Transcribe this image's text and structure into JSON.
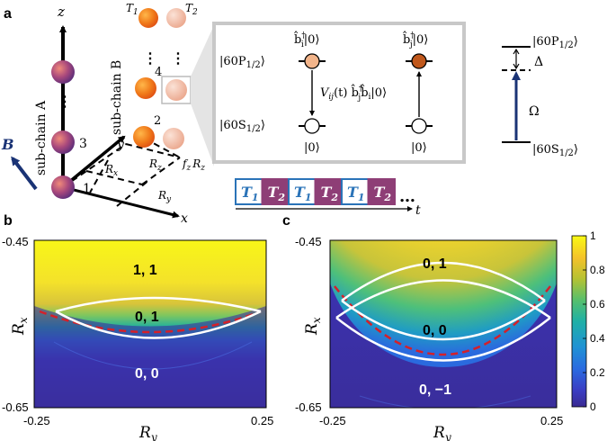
{
  "panel_labels": {
    "a": "a",
    "b": "b",
    "c": "c"
  },
  "panel_a": {
    "axes": {
      "z": "z",
      "y": "y",
      "x": "x"
    },
    "field": "B",
    "chains": {
      "A": "sub-chain A",
      "B": "sub-chain B"
    },
    "site_labels": {
      "s1": "1",
      "s2": "2",
      "s3": "3",
      "s4": "4"
    },
    "ellipsis": "⋮",
    "tweezer_labels": {
      "T1": "T",
      "T1_sub": "1",
      "T2": "T",
      "T2_sub": "2"
    },
    "distance_labels": {
      "Rx": "R",
      "Rx_sub": "x",
      "Ry": "R",
      "Ry_sub": "y",
      "Rz": "R",
      "Rz_sub": "z",
      "fzRz": "f",
      "fzRz_sub": "z",
      "fzRz_R": "R",
      "fzRz_Rsub": "z"
    }
  },
  "inset": {
    "state_P": "|60P",
    "state_P_sub": "1/2",
    "state_S": "|60S",
    "state_S_sub": "1/2",
    "ket_close": "⟩",
    "bi_op": "b̂",
    "bj_op": "b̂",
    "dagger": "†",
    "sub_i": "i",
    "sub_j": "j",
    "vac": "|0⟩",
    "coupling": "V",
    "coupling_sub": "ij",
    "coupling_rest": "(t) b̂",
    "coupling_tail": "b̂",
    "coupling_end": "|0⟩"
  },
  "level_diagram": {
    "upper": "|60P",
    "upper_sub": "1/2",
    "lower": "|60S",
    "lower_sub": "1/2",
    "ket": "⟩",
    "detuning": "Δ",
    "rabi": "Ω"
  },
  "sequence": {
    "pulses": [
      {
        "label": "T",
        "sub": "1",
        "style": "white"
      },
      {
        "label": "T",
        "sub": "2",
        "style": "purple"
      },
      {
        "label": "T",
        "sub": "1",
        "style": "white"
      },
      {
        "label": "T",
        "sub": "2",
        "style": "purple"
      },
      {
        "label": "T",
        "sub": "1",
        "style": "white"
      },
      {
        "label": "T",
        "sub": "2",
        "style": "purple"
      }
    ],
    "dots": "…",
    "time": "t"
  },
  "maps": {
    "b": {
      "xlabel": "R",
      "xlabel_sub": "y",
      "ylabel": "R",
      "ylabel_sub": "x",
      "xticks": [
        "-0.25",
        "0.25"
      ],
      "yticks": [
        "-0.45",
        "-0.65"
      ],
      "regions": [
        "1, 1",
        "0, 1",
        "0, 0"
      ]
    },
    "c": {
      "xlabel": "R",
      "xlabel_sub": "y",
      "ylabel": "R",
      "ylabel_sub": "x",
      "xticks": [
        "-0.25",
        "0.25"
      ],
      "yticks": [
        "-0.45",
        "-0.65"
      ],
      "regions": [
        "0, 1",
        "0, 0",
        "0, −1"
      ]
    }
  },
  "colorbar": {
    "ticks": [
      "1",
      "0.8",
      "0.6",
      "0.4",
      "0.2",
      "0"
    ],
    "colors": [
      "#fafa14",
      "#f0be28",
      "#86c855",
      "#1fa8a8",
      "#2d78d6",
      "#3b2c98"
    ]
  },
  "colors": {
    "purple": "#8e3e76",
    "blue_arrow": "#1a3375",
    "orange": "#f0761a",
    "dashed_red": "#d4202a",
    "pulse_blue": "#2a73b8"
  }
}
